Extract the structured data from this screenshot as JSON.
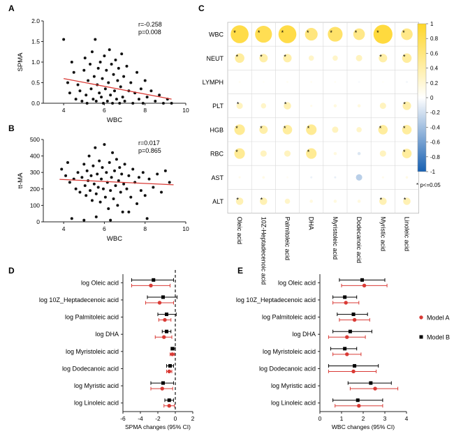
{
  "panels": {
    "A": "A",
    "B": "B",
    "C": "C",
    "D": "D",
    "E": "E"
  },
  "chart_data": [
    {
      "id": "A",
      "type": "scatter",
      "xlabel": "WBC",
      "ylabel": "SPMA",
      "xlim": [
        3,
        10
      ],
      "ylim": [
        0,
        2
      ],
      "xticks": [
        "4",
        "6",
        "8",
        "10"
      ],
      "yticks": [
        "0.0",
        "0.5",
        "1.0",
        "1.5",
        "2.0"
      ],
      "annotation": [
        "r=-0.258",
        "p=0.008"
      ],
      "regression": {
        "x": [
          4,
          9.3
        ],
        "y": [
          0.6,
          0.1
        ]
      },
      "points": [
        [
          4.0,
          1.55
        ],
        [
          4.2,
          0.5
        ],
        [
          4.3,
          0.25
        ],
        [
          4.4,
          1.0
        ],
        [
          4.5,
          0.75
        ],
        [
          4.6,
          0.1
        ],
        [
          4.7,
          0.45
        ],
        [
          4.8,
          0.3
        ],
        [
          4.9,
          0.05
        ],
        [
          5.0,
          0.8
        ],
        [
          5.05,
          1.1
        ],
        [
          5.1,
          0.2
        ],
        [
          5.15,
          0.0
        ],
        [
          5.2,
          0.55
        ],
        [
          5.3,
          0.95
        ],
        [
          5.35,
          0.35
        ],
        [
          5.4,
          1.25
        ],
        [
          5.45,
          0.1
        ],
        [
          5.5,
          0.65
        ],
        [
          5.55,
          1.55
        ],
        [
          5.6,
          0.05
        ],
        [
          5.65,
          0.45
        ],
        [
          5.7,
          0.85
        ],
        [
          5.75,
          0.25
        ],
        [
          5.8,
          1.0
        ],
        [
          5.85,
          0.15
        ],
        [
          5.9,
          0.6
        ],
        [
          5.95,
          0.0
        ],
        [
          6.0,
          1.15
        ],
        [
          6.05,
          0.35
        ],
        [
          6.1,
          0.8
        ],
        [
          6.15,
          0.05
        ],
        [
          6.2,
          0.5
        ],
        [
          6.25,
          1.3
        ],
        [
          6.3,
          0.2
        ],
        [
          6.35,
          0.95
        ],
        [
          6.4,
          0.0
        ],
        [
          6.45,
          0.7
        ],
        [
          6.5,
          0.3
        ],
        [
          6.55,
          1.05
        ],
        [
          6.6,
          0.1
        ],
        [
          6.65,
          0.55
        ],
        [
          6.7,
          0.85
        ],
        [
          6.75,
          0.0
        ],
        [
          6.8,
          0.4
        ],
        [
          6.85,
          1.2
        ],
        [
          6.9,
          0.15
        ],
        [
          6.95,
          0.65
        ],
        [
          7.0,
          0.05
        ],
        [
          7.1,
          0.9
        ],
        [
          7.2,
          0.3
        ],
        [
          7.3,
          0.5
        ],
        [
          7.4,
          0.0
        ],
        [
          7.5,
          0.25
        ],
        [
          7.6,
          0.75
        ],
        [
          7.7,
          0.1
        ],
        [
          7.8,
          0.35
        ],
        [
          7.9,
          0.0
        ],
        [
          8.0,
          0.55
        ],
        [
          8.1,
          0.15
        ],
        [
          8.3,
          0.3
        ],
        [
          8.5,
          0.05
        ],
        [
          8.7,
          0.2
        ],
        [
          8.9,
          0.0
        ],
        [
          9.1,
          0.1
        ],
        [
          9.3,
          0.0
        ]
      ]
    },
    {
      "id": "B",
      "type": "scatter",
      "xlabel": "WBC",
      "ylabel": "tt-MA",
      "xlim": [
        3,
        10
      ],
      "ylim": [
        0,
        500
      ],
      "xticks": [
        "4",
        "6",
        "8",
        "10"
      ],
      "yticks": [
        "0",
        "100",
        "200",
        "300",
        "400",
        "500"
      ],
      "annotation": [
        "r=0.017",
        "p=0.865"
      ],
      "regression": {
        "x": [
          3.8,
          9.4
        ],
        "y": [
          258,
          225
        ]
      },
      "points": [
        [
          3.9,
          320
        ],
        [
          4.1,
          280
        ],
        [
          4.3,
          240
        ],
        [
          4.5,
          260
        ],
        [
          4.6,
          200
        ],
        [
          4.7,
          300
        ],
        [
          4.8,
          180
        ],
        [
          4.9,
          270
        ],
        [
          5.0,
          350
        ],
        [
          5.05,
          220
        ],
        [
          5.1,
          160
        ],
        [
          5.15,
          310
        ],
        [
          5.2,
          250
        ],
        [
          5.25,
          400
        ],
        [
          5.3,
          190
        ],
        [
          5.35,
          280
        ],
        [
          5.4,
          130
        ],
        [
          5.45,
          340
        ],
        [
          5.5,
          230
        ],
        [
          5.55,
          450
        ],
        [
          5.6,
          170
        ],
        [
          5.65,
          290
        ],
        [
          5.7,
          210
        ],
        [
          5.75,
          370
        ],
        [
          5.8,
          120
        ],
        [
          5.85,
          260
        ],
        [
          5.9,
          330
        ],
        [
          5.95,
          200
        ],
        [
          6.0,
          470
        ],
        [
          6.05,
          150
        ],
        [
          6.1,
          300
        ],
        [
          6.15,
          240
        ],
        [
          6.2,
          80
        ],
        [
          6.25,
          360
        ],
        [
          6.3,
          190
        ],
        [
          6.35,
          270
        ],
        [
          6.4,
          420
        ],
        [
          6.45,
          140
        ],
        [
          6.5,
          310
        ],
        [
          6.55,
          220
        ],
        [
          6.6,
          380
        ],
        [
          6.65,
          100
        ],
        [
          6.7,
          250
        ],
        [
          6.75,
          330
        ],
        [
          6.8,
          180
        ],
        [
          6.85,
          290
        ],
        [
          6.9,
          60
        ],
        [
          6.95,
          230
        ],
        [
          7.0,
          350
        ],
        [
          7.1,
          200
        ],
        [
          7.2,
          280
        ],
        [
          7.3,
          150
        ],
        [
          7.4,
          320
        ],
        [
          7.5,
          240
        ],
        [
          7.6,
          110
        ],
        [
          7.7,
          270
        ],
        [
          7.8,
          190
        ],
        [
          7.9,
          300
        ],
        [
          8.0,
          160
        ],
        [
          8.2,
          260
        ],
        [
          8.4,
          210
        ],
        [
          8.6,
          290
        ],
        [
          8.8,
          180
        ],
        [
          9.0,
          310
        ],
        [
          9.2,
          240
        ],
        [
          4.4,
          20
        ],
        [
          5.6,
          30
        ],
        [
          6.3,
          10
        ],
        [
          7.2,
          60
        ],
        [
          8.1,
          20
        ],
        [
          5.0,
          10
        ],
        [
          4.2,
          360
        ]
      ]
    },
    {
      "id": "C",
      "type": "heatmap",
      "rows": [
        "WBC",
        "NEUT",
        "LYMPH",
        "PLT",
        "HGB",
        "RBC",
        "AST",
        "ALT"
      ],
      "columns": [
        "Oleic acid",
        "10Z-Heptadecenoic acid",
        "Palmitoleic acid",
        "DHA",
        "Myristoleic acid",
        "Dodecanoic acid",
        "Myristic acid",
        "Linoleic acid"
      ],
      "values": [
        [
          0.85,
          0.8,
          0.85,
          0.6,
          0.7,
          0.55,
          0.9,
          0.55
        ],
        [
          0.45,
          0.4,
          0.4,
          0.25,
          0.25,
          0.3,
          0.4,
          0.45
        ],
        [
          0.05,
          0.03,
          0.05,
          0.05,
          0.05,
          -0.03,
          0.03,
          -0.05
        ],
        [
          0.3,
          0.25,
          0.35,
          0.1,
          0.15,
          0.15,
          0.3,
          0.4
        ],
        [
          0.5,
          0.4,
          0.45,
          0.5,
          0.3,
          0.25,
          0.45,
          0.45
        ],
        [
          0.5,
          0.3,
          0.3,
          0.5,
          0.15,
          -0.15,
          0.3,
          0.45
        ],
        [
          0.1,
          0.12,
          0.05,
          -0.08,
          -0.1,
          -0.3,
          0.1,
          0.12
        ],
        [
          0.35,
          0.35,
          0.25,
          0.15,
          0.15,
          0.15,
          0.35,
          0.35
        ]
      ],
      "significant": [
        [
          true,
          true,
          true,
          true,
          true,
          true,
          true,
          true
        ],
        [
          true,
          true,
          true,
          false,
          false,
          false,
          true,
          true
        ],
        [
          false,
          false,
          false,
          false,
          false,
          false,
          false,
          false
        ],
        [
          true,
          false,
          true,
          false,
          false,
          false,
          false,
          true
        ],
        [
          true,
          true,
          true,
          true,
          false,
          false,
          true,
          true
        ],
        [
          true,
          false,
          false,
          true,
          false,
          false,
          false,
          true
        ],
        [
          false,
          false,
          false,
          false,
          false,
          false,
          false,
          false
        ],
        [
          true,
          true,
          false,
          false,
          false,
          false,
          true,
          true
        ]
      ],
      "colorbar_ticks": [
        "1",
        "0.8",
        "0.6",
        "0.4",
        "0.2",
        "0",
        "-0.2",
        "-0.4",
        "-0.6",
        "-0.8",
        "-1"
      ],
      "note": "* p<=0.05"
    },
    {
      "id": "D",
      "type": "forest",
      "xlabel": "SPMA changes (95% CI)",
      "xlim": [
        -6,
        2
      ],
      "xticks": [
        "-6",
        "-4",
        "-2",
        "0",
        "2"
      ],
      "labels": [
        "log Oleic acid",
        "log 10Z_Heptadecenoic acid",
        "log Palmitoleic acid",
        "log DHA",
        "log Myristoleic acid",
        "log Dodecanoic acid",
        "log Myristic acid",
        "log Linoleic acid"
      ],
      "series": [
        {
          "name": "Model B",
          "color": "#000000",
          "estimate": [
            -2.5,
            -1.4,
            -1.0,
            -1.0,
            -0.3,
            -0.6,
            -1.4,
            -0.7
          ],
          "lo": [
            -5.0,
            -3.2,
            -2.0,
            -1.5,
            -0.5,
            -1.0,
            -2.8,
            -1.2
          ],
          "hi": [
            -0.2,
            0.2,
            0.1,
            -0.5,
            0.0,
            -0.2,
            -0.2,
            -0.2
          ]
        },
        {
          "name": "Model A",
          "color": "#d93a35",
          "estimate": [
            -2.8,
            -1.8,
            -1.2,
            -1.3,
            -0.35,
            -0.7,
            -1.5,
            -0.7
          ],
          "lo": [
            -5.0,
            -3.4,
            -1.9,
            -2.3,
            -0.6,
            -1.0,
            -2.8,
            -1.3
          ],
          "hi": [
            -0.6,
            -0.2,
            -0.5,
            -0.4,
            -0.1,
            -0.4,
            -0.3,
            -0.1
          ]
        }
      ]
    },
    {
      "id": "E",
      "type": "forest",
      "xlabel": "WBC changes (95% CI)",
      "xlim": [
        0,
        4
      ],
      "xticks": [
        "0",
        "1",
        "2",
        "3",
        "4"
      ],
      "labels": [
        "log Oleic acid",
        "log 10Z_Heptadecenoic acid",
        "log Palmitoleic acid",
        "log DHA",
        "log Myristoleic acid",
        "log Dodecanoic acid",
        "log Myristic acid",
        "log Linoleic acid"
      ],
      "legend": [
        "Model A",
        "Model B"
      ],
      "series": [
        {
          "name": "Model B",
          "color": "#000000",
          "estimate": [
            1.95,
            1.15,
            1.55,
            1.4,
            1.15,
            1.6,
            2.35,
            1.75
          ],
          "lo": [
            0.9,
            0.6,
            0.8,
            0.6,
            0.5,
            0.4,
            1.3,
            0.6
          ],
          "hi": [
            3.0,
            1.7,
            2.2,
            2.4,
            1.7,
            2.7,
            3.3,
            2.9
          ]
        },
        {
          "name": "Model A",
          "color": "#d93a35",
          "estimate": [
            2.05,
            1.2,
            1.6,
            1.25,
            1.25,
            1.55,
            2.55,
            1.8
          ],
          "lo": [
            1.0,
            0.6,
            0.9,
            0.4,
            0.6,
            0.4,
            1.4,
            0.7
          ],
          "hi": [
            3.1,
            1.8,
            2.3,
            2.1,
            1.9,
            2.6,
            3.6,
            2.9
          ]
        }
      ]
    }
  ]
}
